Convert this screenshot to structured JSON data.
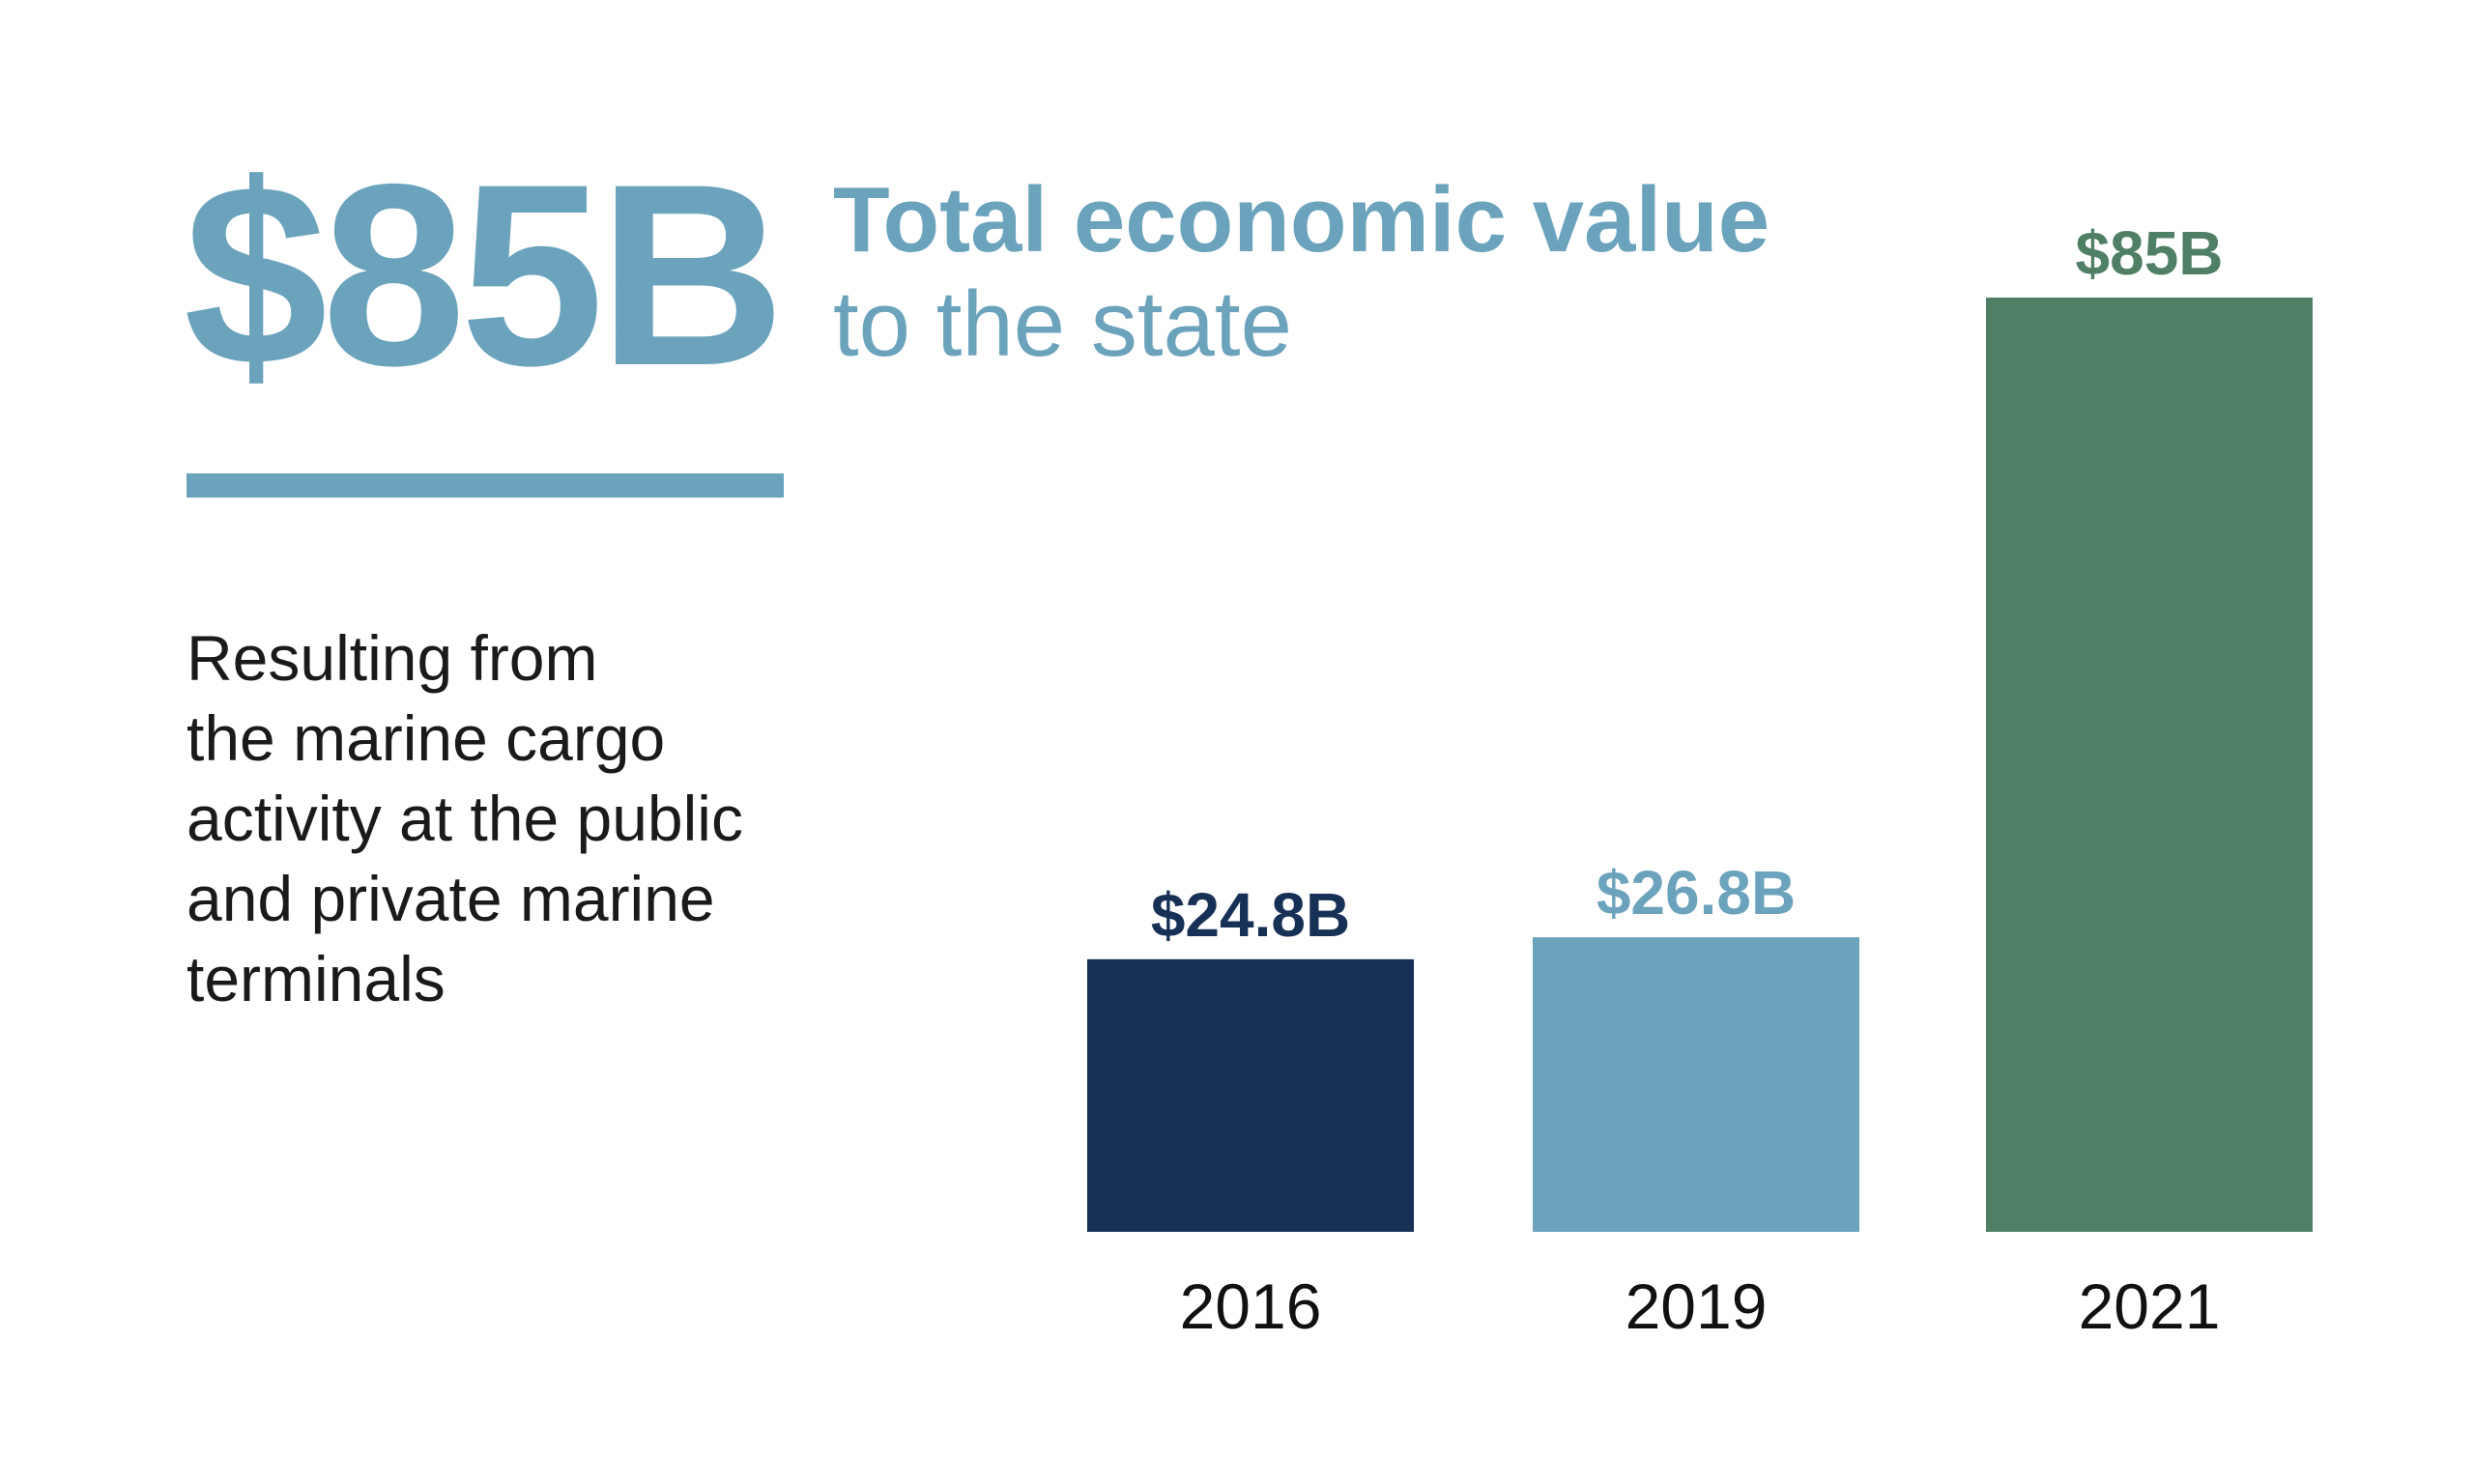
{
  "headline": {
    "figure": "$85B",
    "title": "Total economic value",
    "subtitle": "to the state"
  },
  "description": {
    "lines": [
      "Resulting from",
      "the marine cargo",
      "activity at the public",
      "and private marine",
      "terminals"
    ]
  },
  "colors": {
    "accent": "#6ba3bc",
    "navy": "#173055",
    "green": "#4f7f65",
    "text": "#1a1a1a"
  },
  "chart_data": {
    "type": "bar",
    "categories": [
      "2016",
      "2019",
      "2021"
    ],
    "values": [
      24.8,
      26.8,
      85
    ],
    "value_labels": [
      "$24.8B",
      "$26.8B",
      "$85B"
    ],
    "bar_colors": [
      "#173055",
      "#6ba3bc",
      "#4f7f65"
    ],
    "ylim": [
      0,
      85
    ],
    "grid": false,
    "unit": "$B"
  }
}
